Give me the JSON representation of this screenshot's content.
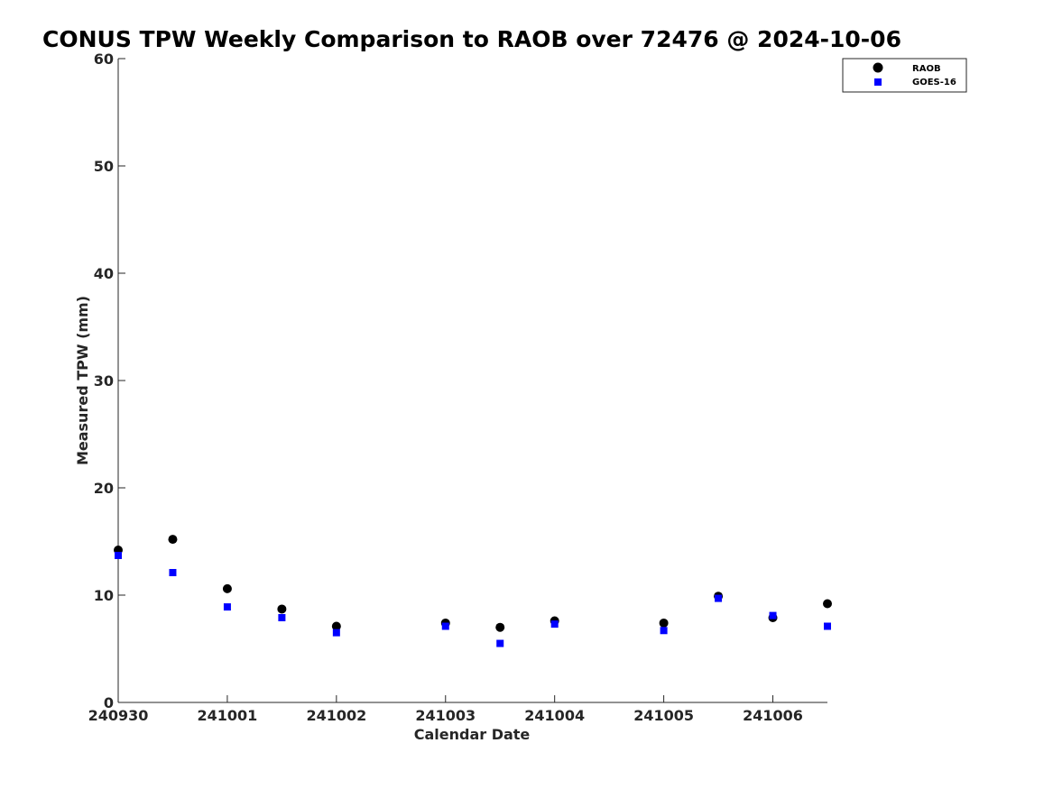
{
  "chart_data": {
    "type": "scatter",
    "title": "CONUS TPW Weekly Comparison to RAOB over 72476 @ 2024-10-06",
    "xlabel": "Calendar Date",
    "ylabel": "Measured TPW (mm)",
    "x_tick_labels": [
      "240930",
      "241001",
      "241002",
      "241003",
      "241004",
      "241005",
      "241006"
    ],
    "y_tick_labels": [
      "0",
      "10",
      "20",
      "30",
      "40",
      "50",
      "60"
    ],
    "ylim": [
      0,
      60
    ],
    "xlim": [
      "2024-09-30 00:00",
      "2024-10-06 12:00"
    ],
    "grid": false,
    "legend_position": "top-right",
    "series": [
      {
        "name": "RAOB",
        "marker": "circle",
        "color": "#000000",
        "points": [
          {
            "x": "2024-09-30 00:00",
            "y": 14.2
          },
          {
            "x": "2024-09-30 12:00",
            "y": 15.2
          },
          {
            "x": "2024-10-01 00:00",
            "y": 10.6
          },
          {
            "x": "2024-10-01 12:00",
            "y": 8.7
          },
          {
            "x": "2024-10-02 00:00",
            "y": 7.1
          },
          {
            "x": "2024-10-03 00:00",
            "y": 7.4
          },
          {
            "x": "2024-10-03 12:00",
            "y": 7.0
          },
          {
            "x": "2024-10-04 00:00",
            "y": 7.6
          },
          {
            "x": "2024-10-05 00:00",
            "y": 7.4
          },
          {
            "x": "2024-10-05 12:00",
            "y": 9.9
          },
          {
            "x": "2024-10-06 00:00",
            "y": 7.9
          },
          {
            "x": "2024-10-06 12:00",
            "y": 9.2
          }
        ]
      },
      {
        "name": "GOES-16",
        "marker": "square",
        "color": "#0000ff",
        "points": [
          {
            "x": "2024-09-30 00:00",
            "y": 13.7
          },
          {
            "x": "2024-09-30 12:00",
            "y": 12.1
          },
          {
            "x": "2024-10-01 00:00",
            "y": 8.9
          },
          {
            "x": "2024-10-01 12:00",
            "y": 7.9
          },
          {
            "x": "2024-10-02 00:00",
            "y": 6.5
          },
          {
            "x": "2024-10-03 00:00",
            "y": 7.1
          },
          {
            "x": "2024-10-03 12:00",
            "y": 5.5
          },
          {
            "x": "2024-10-04 00:00",
            "y": 7.3
          },
          {
            "x": "2024-10-05 00:00",
            "y": 6.7
          },
          {
            "x": "2024-10-05 12:00",
            "y": 9.7
          },
          {
            "x": "2024-10-06 00:00",
            "y": 8.1
          },
          {
            "x": "2024-10-06 12:00",
            "y": 7.1
          }
        ]
      }
    ]
  }
}
